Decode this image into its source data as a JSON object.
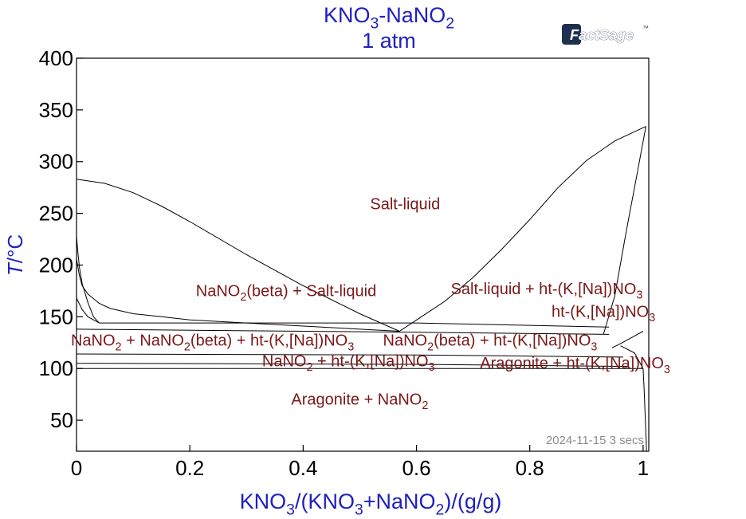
{
  "header": {
    "title": "KNO3-NaNO2",
    "subtitle": "1 atm"
  },
  "logo": {
    "text": "FactSage",
    "tm": "™"
  },
  "footer": {
    "timestamp": "2024-11-15  3 secs"
  },
  "colors": {
    "title": "#1f1fbf",
    "axis_label": "#1f1fbf",
    "region_label": "#7a1818",
    "line": "#000000",
    "timestamp": "#8c8c8c",
    "logo": "#1f2f4f"
  },
  "chart_data": {
    "type": "phase_diagram",
    "title": "KNO3-NaNO2",
    "subtitle": "1 atm",
    "xlabel": "KNO3/(KNO3+NaNO2)/(g/g)",
    "ylabel": "T/°C",
    "xlim": [
      0,
      1.01
    ],
    "ylim": [
      20,
      400
    ],
    "x_ticks": [
      0,
      0.2,
      0.4,
      0.6,
      0.8,
      1
    ],
    "x_tick_labels": [
      "0",
      "0.2",
      "0.4",
      "0.6",
      "0.8",
      "1"
    ],
    "y_ticks": [
      50,
      100,
      150,
      200,
      250,
      300,
      350,
      400
    ],
    "y_tick_labels": [
      "50",
      "100",
      "150",
      "200",
      "250",
      "300",
      "350",
      "400"
    ],
    "grid": false,
    "curves": [
      {
        "name": "liquidus-nano2",
        "points": [
          [
            0,
            283
          ],
          [
            0.05,
            279
          ],
          [
            0.1,
            270
          ],
          [
            0.15,
            257
          ],
          [
            0.2,
            242
          ],
          [
            0.3,
            210
          ],
          [
            0.4,
            180
          ],
          [
            0.5,
            153
          ],
          [
            0.57,
            136
          ]
        ]
      },
      {
        "name": "liquidus-kno3",
        "points": [
          [
            0.57,
            136
          ],
          [
            0.65,
            165
          ],
          [
            0.7,
            188
          ],
          [
            0.75,
            215
          ],
          [
            0.8,
            244
          ],
          [
            0.85,
            275
          ],
          [
            0.9,
            301
          ],
          [
            0.95,
            320
          ],
          [
            1.005,
            334
          ]
        ]
      },
      {
        "name": "solidus-kno3-solution",
        "points": [
          [
            0.93,
            133
          ],
          [
            0.95,
            170
          ],
          [
            0.97,
            232
          ],
          [
            0.99,
            290
          ],
          [
            1.005,
            334
          ]
        ]
      },
      {
        "name": "solvus-upper",
        "points": [
          [
            0.945,
            120
          ],
          [
            0.96,
            124
          ],
          [
            0.98,
            130
          ],
          [
            1.0,
            136
          ]
        ]
      },
      {
        "name": "solvus-lower",
        "points": [
          [
            1.0,
            100
          ],
          [
            1.002,
            78
          ],
          [
            1.004,
            50
          ],
          [
            1.006,
            20
          ]
        ]
      },
      {
        "name": "solvus-arag",
        "points": [
          [
            0.96,
            122
          ],
          [
            0.985,
            115
          ],
          [
            1.0,
            100
          ]
        ]
      },
      {
        "name": "nano2-beta-boundary-1",
        "points": [
          [
            0,
            228
          ],
          [
            0.002,
            215
          ],
          [
            0.005,
            198
          ],
          [
            0.01,
            182
          ],
          [
            0.02,
            164
          ],
          [
            0.03,
            150
          ],
          [
            0.04,
            144
          ]
        ]
      },
      {
        "name": "nano2-beta-boundary-2",
        "points": [
          [
            0,
            206
          ],
          [
            0.005,
            190
          ],
          [
            0.01,
            180
          ],
          [
            0.02,
            172
          ],
          [
            0.04,
            163
          ],
          [
            0.06,
            158
          ],
          [
            0.1,
            153
          ],
          [
            0.15,
            150
          ],
          [
            0.2,
            147
          ],
          [
            0.3,
            144
          ],
          [
            0.4,
            141
          ],
          [
            0.5,
            138
          ],
          [
            0.57,
            136
          ]
        ]
      },
      {
        "name": "nano2-beta-boundary-3",
        "points": [
          [
            0,
            168
          ],
          [
            0.01,
            157
          ],
          [
            0.02,
            150
          ],
          [
            0.04,
            144
          ]
        ]
      },
      {
        "name": "eutectic-line",
        "points": [
          [
            0.04,
            144
          ],
          [
            0.6,
            144
          ],
          [
            0.94,
            140
          ]
        ]
      },
      {
        "name": "eutectoid-line-1",
        "points": [
          [
            0,
            138
          ],
          [
            0.6,
            135
          ],
          [
            0.94,
            133
          ]
        ]
      },
      {
        "name": "eutectoid-line-2",
        "points": [
          [
            0,
            114
          ],
          [
            0.6,
            113
          ],
          [
            0.965,
            111
          ]
        ]
      },
      {
        "name": "eutectoid-line-3",
        "points": [
          [
            0,
            105
          ],
          [
            0.6,
            104
          ],
          [
            0.975,
            102
          ]
        ]
      },
      {
        "name": "eutectoid-line-4",
        "points": [
          [
            0,
            100
          ],
          [
            0.6,
            100
          ],
          [
            1.0,
            100
          ]
        ]
      }
    ],
    "regions": [
      {
        "label": "Salt-liquid",
        "x": 0.58,
        "y": 254
      },
      {
        "label": "NaNO2(beta) + Salt-liquid",
        "x": 0.37,
        "y": 170
      },
      {
        "label": "Salt-liquid + ht-(K,[Na])NO3",
        "x": 0.83,
        "y": 172
      },
      {
        "label": "ht-(K,[Na])NO3",
        "x": 0.93,
        "y": 150
      },
      {
        "label": "NaNO2 + NaNO2(beta) + ht-(K,[Na])NO3",
        "x": 0.24,
        "y": 122
      },
      {
        "label": "NaNO2(beta) + ht-(K,[Na])NO3",
        "x": 0.73,
        "y": 122
      },
      {
        "label": "NaNO2 + ht-(K,[Na])NO3",
        "x": 0.48,
        "y": 102
      },
      {
        "label": "Aragonite + ht-(K,[Na])NO3",
        "x": 0.88,
        "y": 100
      },
      {
        "label": "Aragonite + NaNO2",
        "x": 0.5,
        "y": 65
      }
    ]
  }
}
